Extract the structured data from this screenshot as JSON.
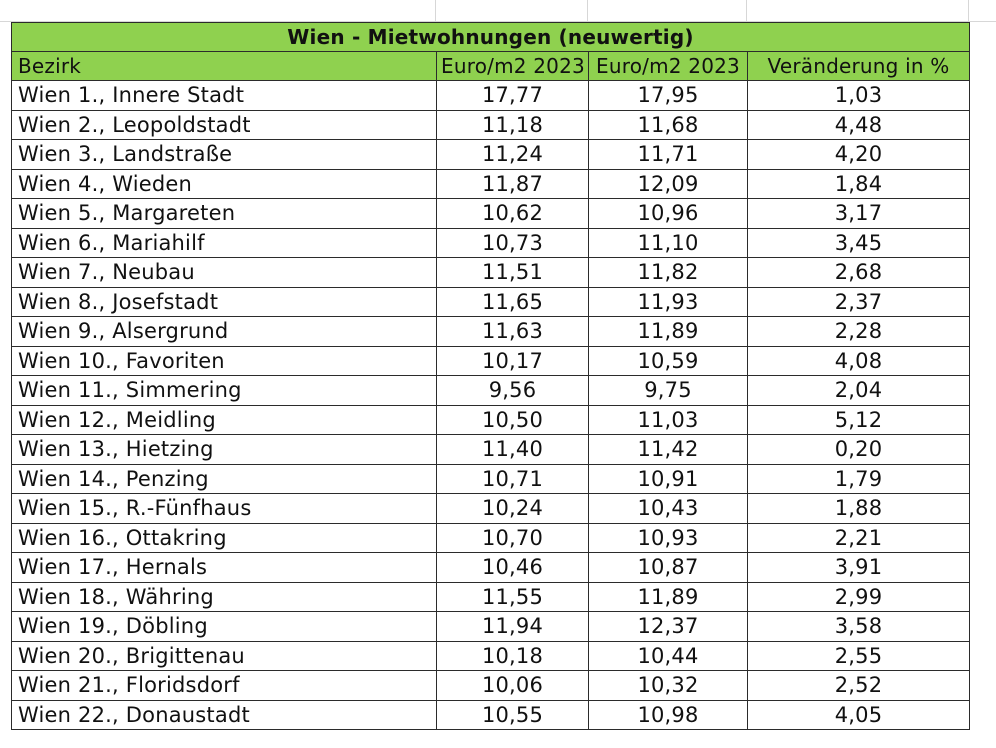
{
  "table": {
    "title": "Wien - Mietwohnungen (neuwertig)",
    "headers": [
      "Bezirk",
      "Euro/m2 2023",
      "Euro/m2 2023",
      "Veränderung in %"
    ],
    "rows": [
      [
        "Wien 1., Innere Stadt",
        "17,77",
        "17,95",
        "1,03"
      ],
      [
        "Wien 2., Leopoldstadt",
        "11,18",
        "11,68",
        "4,48"
      ],
      [
        "Wien 3., Landstraße",
        "11,24",
        "11,71",
        "4,20"
      ],
      [
        "Wien 4., Wieden",
        "11,87",
        "12,09",
        "1,84"
      ],
      [
        "Wien 5., Margareten",
        "10,62",
        "10,96",
        "3,17"
      ],
      [
        "Wien 6., Mariahilf",
        "10,73",
        "11,10",
        "3,45"
      ],
      [
        "Wien 7., Neubau",
        "11,51",
        "11,82",
        "2,68"
      ],
      [
        "Wien 8., Josefstadt",
        "11,65",
        "11,93",
        "2,37"
      ],
      [
        "Wien 9., Alsergrund",
        "11,63",
        "11,89",
        "2,28"
      ],
      [
        "Wien 10., Favoriten",
        "10,17",
        "10,59",
        "4,08"
      ],
      [
        "Wien 11., Simmering",
        "9,56",
        "9,75",
        "2,04"
      ],
      [
        "Wien 12., Meidling",
        "10,50",
        "11,03",
        "5,12"
      ],
      [
        "Wien 13., Hietzing",
        "11,40",
        "11,42",
        "0,20"
      ],
      [
        "Wien 14., Penzing",
        "10,71",
        "10,91",
        "1,79"
      ],
      [
        "Wien 15., R.-Fünfhaus",
        "10,24",
        "10,43",
        "1,88"
      ],
      [
        "Wien 16., Ottakring",
        "10,70",
        "10,93",
        "2,21"
      ],
      [
        "Wien 17., Hernals",
        "10,46",
        "10,87",
        "3,91"
      ],
      [
        "Wien 18., Währing",
        "11,55",
        "11,89",
        "2,99"
      ],
      [
        "Wien 19., Döbling",
        "11,94",
        "12,37",
        "3,58"
      ],
      [
        "Wien 20., Brigittenau",
        "10,18",
        "10,44",
        "2,55"
      ],
      [
        "Wien 21., Floridsdorf",
        "10,06",
        "10,32",
        "2,52"
      ],
      [
        "Wien 22., Donaustadt",
        "10,55",
        "10,98",
        "4,05"
      ]
    ]
  },
  "colors": {
    "header_fill": "#8fd14f",
    "border": "#2b2b2b",
    "gridline": "#d7d7d7"
  }
}
